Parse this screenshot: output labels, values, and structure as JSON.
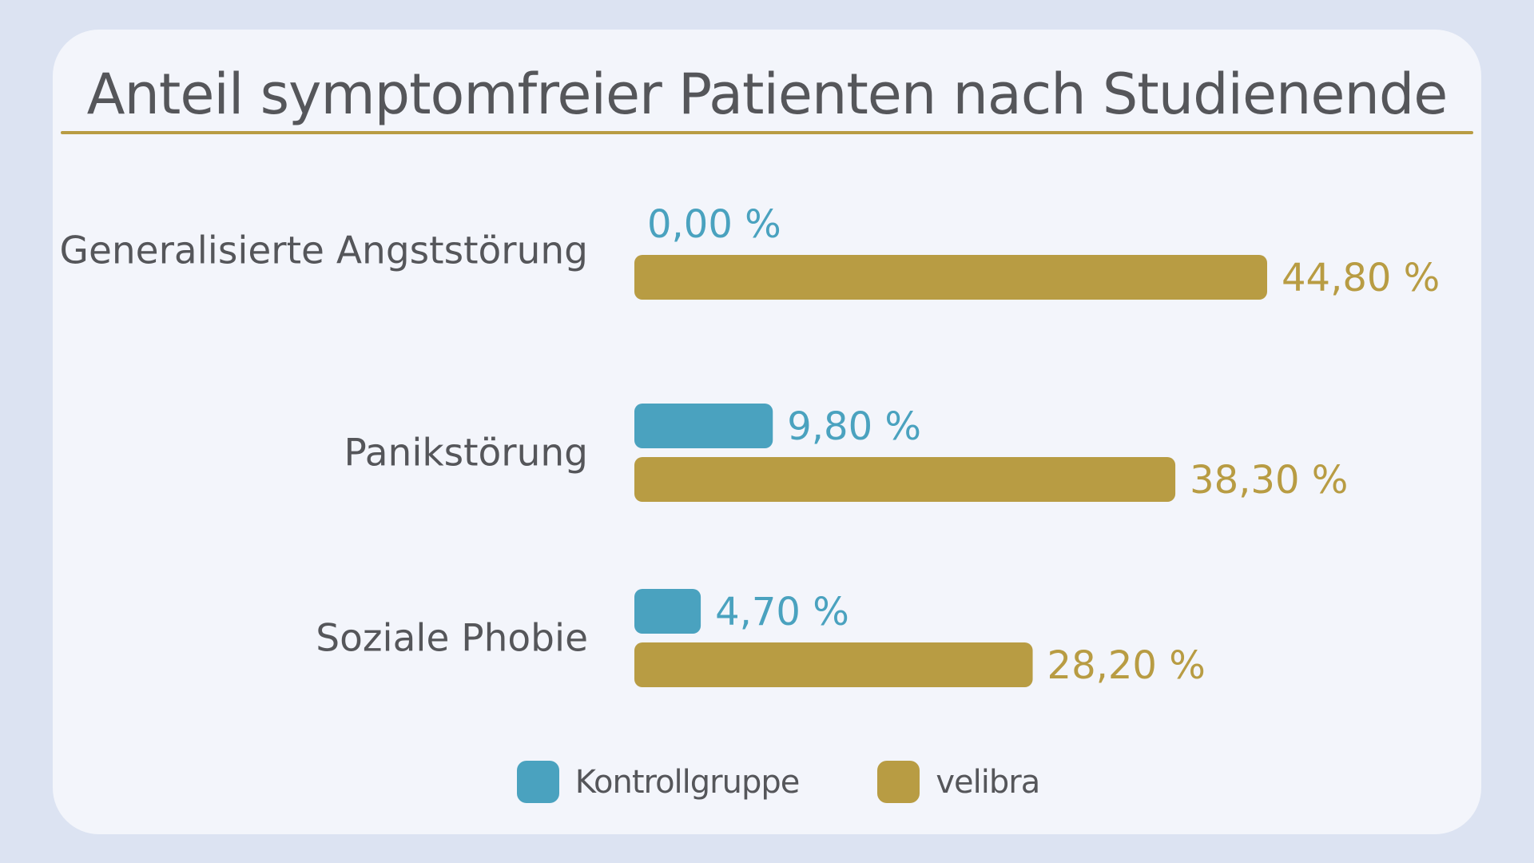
{
  "chart_data": {
    "type": "bar",
    "orientation": "horizontal",
    "title": "Anteil symptomfreier Patienten nach Studienende",
    "categories": [
      "Generalisierte Angststörung",
      "Panikstörung",
      "Soziale Phobie"
    ],
    "series": [
      {
        "name": "Kontrollgruppe",
        "color": "#4aa2bf",
        "values": [
          0.0,
          9.8,
          4.7
        ],
        "labels": [
          "0,00 %",
          "9,80 %",
          "4,70 %"
        ]
      },
      {
        "name": "velibra",
        "color": "#b89c43",
        "values": [
          44.8,
          38.3,
          28.2
        ],
        "labels": [
          "44,80 %",
          "38,30 %",
          "28,20 %"
        ]
      }
    ],
    "xlim": [
      0,
      44.8
    ],
    "grid": false,
    "legend_position": "bottom-center"
  }
}
